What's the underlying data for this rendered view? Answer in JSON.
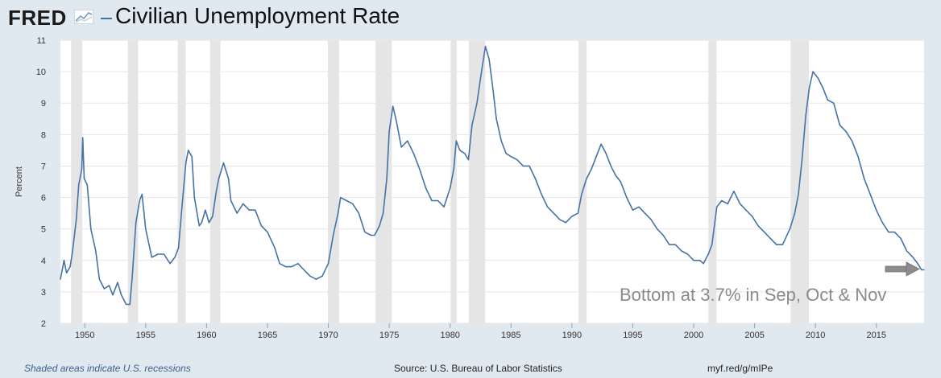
{
  "header": {
    "logo_text": "FRED",
    "title": "Civilian Unemployment Rate"
  },
  "footer": {
    "recession_note": "Shaded areas indicate U.S. recessions",
    "source": "Source: U.S. Bureau of Labor Statistics",
    "short_url": "myf.red/g/mIPe"
  },
  "annotation": {
    "text": "Bottom at 3.7% in Sep, Oct & Nov"
  },
  "colors": {
    "line": "#4572a7",
    "recession": "#e5e5e5",
    "background": "#e1e9f0",
    "plot": "#ffffff",
    "annotation_text": "#8a8a8a",
    "arrow": "#8c8c8c"
  },
  "chart_data": {
    "type": "line",
    "title": "Civilian Unemployment Rate",
    "ylabel": "Percent",
    "xlabel": "",
    "xlim": [
      1948.0,
      2018.92
    ],
    "ylim": [
      2,
      11
    ],
    "grid": true,
    "y_ticks": [
      2,
      3,
      4,
      5,
      6,
      7,
      8,
      9,
      10,
      11
    ],
    "x_ticks": [
      1950,
      1955,
      1960,
      1965,
      1970,
      1975,
      1980,
      1985,
      1990,
      1995,
      2000,
      2005,
      2010,
      2015
    ],
    "recessions": [
      [
        1948.88,
        1949.79
      ],
      [
        1953.54,
        1954.38
      ],
      [
        1957.63,
        1958.29
      ],
      [
        1960.29,
        1961.13
      ],
      [
        1969.96,
        1970.88
      ],
      [
        1973.88,
        1975.21
      ],
      [
        1980.04,
        1980.54
      ],
      [
        1981.54,
        1982.88
      ],
      [
        1990.54,
        1991.21
      ],
      [
        2001.21,
        2001.88
      ],
      [
        2007.96,
        2009.46
      ]
    ],
    "series": [
      {
        "name": "Civilian Unemployment Rate",
        "points": [
          [
            1948.0,
            3.4
          ],
          [
            1948.3,
            4.0
          ],
          [
            1948.5,
            3.6
          ],
          [
            1948.8,
            3.8
          ],
          [
            1949.0,
            4.3
          ],
          [
            1949.3,
            5.3
          ],
          [
            1949.5,
            6.4
          ],
          [
            1949.75,
            6.9
          ],
          [
            1949.83,
            7.9
          ],
          [
            1949.95,
            6.6
          ],
          [
            1950.2,
            6.4
          ],
          [
            1950.5,
            5.0
          ],
          [
            1950.9,
            4.3
          ],
          [
            1951.2,
            3.4
          ],
          [
            1951.6,
            3.1
          ],
          [
            1952.0,
            3.2
          ],
          [
            1952.3,
            2.9
          ],
          [
            1952.7,
            3.3
          ],
          [
            1953.0,
            2.9
          ],
          [
            1953.4,
            2.6
          ],
          [
            1953.7,
            2.6
          ],
          [
            1953.9,
            3.5
          ],
          [
            1954.2,
            5.2
          ],
          [
            1954.5,
            5.9
          ],
          [
            1954.7,
            6.1
          ],
          [
            1955.0,
            5.0
          ],
          [
            1955.5,
            4.1
          ],
          [
            1956.0,
            4.2
          ],
          [
            1956.5,
            4.2
          ],
          [
            1957.0,
            3.9
          ],
          [
            1957.4,
            4.1
          ],
          [
            1957.7,
            4.4
          ],
          [
            1958.0,
            5.8
          ],
          [
            1958.3,
            7.1
          ],
          [
            1958.5,
            7.5
          ],
          [
            1958.8,
            7.3
          ],
          [
            1959.0,
            6.0
          ],
          [
            1959.4,
            5.1
          ],
          [
            1959.6,
            5.2
          ],
          [
            1959.9,
            5.6
          ],
          [
            1960.2,
            5.2
          ],
          [
            1960.5,
            5.4
          ],
          [
            1960.8,
            6.2
          ],
          [
            1961.0,
            6.6
          ],
          [
            1961.4,
            7.1
          ],
          [
            1961.8,
            6.6
          ],
          [
            1962.0,
            5.9
          ],
          [
            1962.5,
            5.5
          ],
          [
            1963.0,
            5.8
          ],
          [
            1963.5,
            5.6
          ],
          [
            1964.0,
            5.6
          ],
          [
            1964.5,
            5.1
          ],
          [
            1965.0,
            4.9
          ],
          [
            1965.6,
            4.4
          ],
          [
            1966.0,
            3.9
          ],
          [
            1966.5,
            3.8
          ],
          [
            1967.0,
            3.8
          ],
          [
            1967.5,
            3.9
          ],
          [
            1968.0,
            3.7
          ],
          [
            1968.5,
            3.5
          ],
          [
            1969.0,
            3.4
          ],
          [
            1969.5,
            3.5
          ],
          [
            1970.0,
            3.9
          ],
          [
            1970.4,
            4.8
          ],
          [
            1970.8,
            5.5
          ],
          [
            1971.0,
            6.0
          ],
          [
            1971.5,
            5.9
          ],
          [
            1972.0,
            5.8
          ],
          [
            1972.5,
            5.5
          ],
          [
            1973.0,
            4.9
          ],
          [
            1973.5,
            4.8
          ],
          [
            1973.8,
            4.8
          ],
          [
            1974.2,
            5.1
          ],
          [
            1974.5,
            5.5
          ],
          [
            1974.8,
            6.6
          ],
          [
            1975.0,
            8.1
          ],
          [
            1975.3,
            8.9
          ],
          [
            1975.6,
            8.4
          ],
          [
            1976.0,
            7.6
          ],
          [
            1976.5,
            7.8
          ],
          [
            1977.0,
            7.4
          ],
          [
            1977.5,
            6.9
          ],
          [
            1978.0,
            6.3
          ],
          [
            1978.5,
            5.9
          ],
          [
            1979.0,
            5.9
          ],
          [
            1979.5,
            5.7
          ],
          [
            1980.0,
            6.3
          ],
          [
            1980.3,
            6.9
          ],
          [
            1980.5,
            7.8
          ],
          [
            1980.8,
            7.5
          ],
          [
            1981.2,
            7.4
          ],
          [
            1981.5,
            7.2
          ],
          [
            1981.8,
            8.3
          ],
          [
            1982.2,
            9.0
          ],
          [
            1982.5,
            9.8
          ],
          [
            1982.9,
            10.8
          ],
          [
            1983.2,
            10.4
          ],
          [
            1983.5,
            9.5
          ],
          [
            1983.8,
            8.5
          ],
          [
            1984.2,
            7.8
          ],
          [
            1984.6,
            7.4
          ],
          [
            1985.0,
            7.3
          ],
          [
            1985.5,
            7.2
          ],
          [
            1986.0,
            7.0
          ],
          [
            1986.5,
            7.0
          ],
          [
            1987.0,
            6.6
          ],
          [
            1987.5,
            6.1
          ],
          [
            1988.0,
            5.7
          ],
          [
            1988.5,
            5.5
          ],
          [
            1989.0,
            5.3
          ],
          [
            1989.5,
            5.2
          ],
          [
            1990.0,
            5.4
          ],
          [
            1990.5,
            5.5
          ],
          [
            1990.8,
            6.1
          ],
          [
            1991.2,
            6.6
          ],
          [
            1991.6,
            6.9
          ],
          [
            1992.0,
            7.3
          ],
          [
            1992.4,
            7.7
          ],
          [
            1992.8,
            7.4
          ],
          [
            1993.2,
            7.0
          ],
          [
            1993.6,
            6.7
          ],
          [
            1994.0,
            6.5
          ],
          [
            1994.5,
            6.0
          ],
          [
            1995.0,
            5.6
          ],
          [
            1995.5,
            5.7
          ],
          [
            1996.0,
            5.5
          ],
          [
            1996.5,
            5.3
          ],
          [
            1997.0,
            5.0
          ],
          [
            1997.5,
            4.8
          ],
          [
            1998.0,
            4.5
          ],
          [
            1998.5,
            4.5
          ],
          [
            1999.0,
            4.3
          ],
          [
            1999.5,
            4.2
          ],
          [
            2000.0,
            4.0
          ],
          [
            2000.5,
            4.0
          ],
          [
            2000.8,
            3.9
          ],
          [
            2001.2,
            4.2
          ],
          [
            2001.5,
            4.5
          ],
          [
            2001.9,
            5.7
          ],
          [
            2002.3,
            5.9
          ],
          [
            2002.8,
            5.8
          ],
          [
            2003.3,
            6.2
          ],
          [
            2003.8,
            5.8
          ],
          [
            2004.3,
            5.6
          ],
          [
            2004.8,
            5.4
          ],
          [
            2005.3,
            5.1
          ],
          [
            2005.8,
            4.9
          ],
          [
            2006.3,
            4.7
          ],
          [
            2006.8,
            4.5
          ],
          [
            2007.3,
            4.5
          ],
          [
            2007.9,
            5.0
          ],
          [
            2008.3,
            5.5
          ],
          [
            2008.6,
            6.1
          ],
          [
            2008.9,
            7.2
          ],
          [
            2009.2,
            8.6
          ],
          [
            2009.5,
            9.5
          ],
          [
            2009.8,
            10.0
          ],
          [
            2010.2,
            9.8
          ],
          [
            2010.6,
            9.5
          ],
          [
            2011.0,
            9.1
          ],
          [
            2011.5,
            9.0
          ],
          [
            2012.0,
            8.3
          ],
          [
            2012.5,
            8.1
          ],
          [
            2013.0,
            7.8
          ],
          [
            2013.5,
            7.3
          ],
          [
            2014.0,
            6.6
          ],
          [
            2014.5,
            6.1
          ],
          [
            2015.0,
            5.6
          ],
          [
            2015.5,
            5.2
          ],
          [
            2016.0,
            4.9
          ],
          [
            2016.5,
            4.9
          ],
          [
            2017.0,
            4.7
          ],
          [
            2017.5,
            4.3
          ],
          [
            2018.0,
            4.1
          ],
          [
            2018.4,
            3.9
          ],
          [
            2018.7,
            3.7
          ],
          [
            2018.92,
            3.7
          ]
        ]
      }
    ]
  }
}
